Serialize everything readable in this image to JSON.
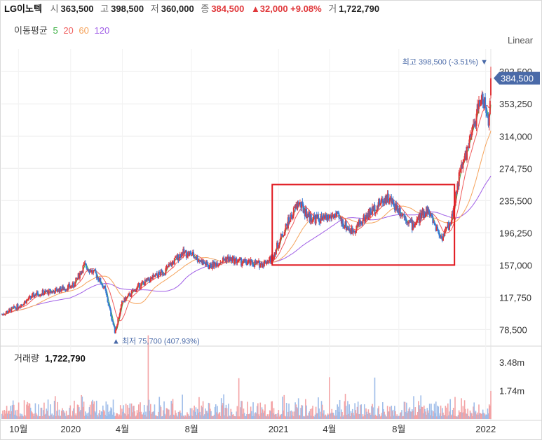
{
  "header": {
    "title": "LG이노텍",
    "open_label": "시",
    "open": "363,500",
    "high_label": "고",
    "high": "398,500",
    "low_label": "저",
    "low": "360,000",
    "close_label": "종",
    "close": "384,500",
    "change": "▲32,000 +9.08%",
    "volume_label": "거",
    "volume": "1,722,790"
  },
  "moving_averages": {
    "label": "이동평균",
    "items": [
      {
        "period": "5",
        "color": "#3cb043"
      },
      {
        "period": "20",
        "color": "#ef5b5b"
      },
      {
        "period": "60",
        "color": "#f5a35b"
      },
      {
        "period": "120",
        "color": "#a05fe6"
      }
    ]
  },
  "scale_mode": "Linear",
  "colors": {
    "up": "#e0373a",
    "down": "#3a7bd5",
    "price_tag": "#4a6aa8",
    "highlight_box": "#e0161d",
    "grid": "#ececec",
    "annotation": "#4a6aa8"
  },
  "chart_data": {
    "type": "candlestick",
    "y_axis": {
      "range": [
        60000,
        420000
      ],
      "ticks": [
        "78,500",
        "117,750",
        "157,000",
        "196,250",
        "235,500",
        "274,750",
        "314,000",
        "353,250",
        "392,500"
      ],
      "tick_values": [
        78500,
        117750,
        157000,
        196250,
        235500,
        274750,
        314000,
        353250,
        392500
      ]
    },
    "x_axis": {
      "ticks": [
        "10월",
        "2020",
        "4월",
        "8월",
        "2021",
        "4월",
        "8월",
        "2022"
      ],
      "tick_dates": [
        "2019-10-01",
        "2020-01-01",
        "2020-04-01",
        "2020-08-01",
        "2021-01-01",
        "2021-04-01",
        "2021-08-01",
        "2022-01-01"
      ],
      "start": "2019-09-01",
      "end": "2022-01-10"
    },
    "price_series": [
      {
        "date": "2019-09-02",
        "close": 97000
      },
      {
        "date": "2019-10-01",
        "close": 107000
      },
      {
        "date": "2019-11-01",
        "close": 122000
      },
      {
        "date": "2019-12-01",
        "close": 125000
      },
      {
        "date": "2020-01-06",
        "close": 132000
      },
      {
        "date": "2020-01-25",
        "close": 157000
      },
      {
        "date": "2020-02-15",
        "close": 145000
      },
      {
        "date": "2020-03-01",
        "close": 128000
      },
      {
        "date": "2020-03-19",
        "close": 75700
      },
      {
        "date": "2020-04-01",
        "close": 112000
      },
      {
        "date": "2020-05-01",
        "close": 132000
      },
      {
        "date": "2020-06-15",
        "close": 150000
      },
      {
        "date": "2020-07-15",
        "close": 172000
      },
      {
        "date": "2020-08-01",
        "close": 170000
      },
      {
        "date": "2020-09-01",
        "close": 155000
      },
      {
        "date": "2020-10-01",
        "close": 165000
      },
      {
        "date": "2020-11-01",
        "close": 160000
      },
      {
        "date": "2020-12-01",
        "close": 158000
      },
      {
        "date": "2020-12-20",
        "close": 165000
      },
      {
        "date": "2021-01-15",
        "close": 205000
      },
      {
        "date": "2021-02-05",
        "close": 233000
      },
      {
        "date": "2021-02-25",
        "close": 215000
      },
      {
        "date": "2021-03-20",
        "close": 212000
      },
      {
        "date": "2021-04-10",
        "close": 218000
      },
      {
        "date": "2021-05-10",
        "close": 198000
      },
      {
        "date": "2021-06-10",
        "close": 220000
      },
      {
        "date": "2021-07-10",
        "close": 240000
      },
      {
        "date": "2021-08-01",
        "close": 225000
      },
      {
        "date": "2021-08-25",
        "close": 205000
      },
      {
        "date": "2021-09-20",
        "close": 225000
      },
      {
        "date": "2021-10-15",
        "close": 190000
      },
      {
        "date": "2021-11-01",
        "close": 210000
      },
      {
        "date": "2021-11-15",
        "close": 265000
      },
      {
        "date": "2021-12-05",
        "close": 310000
      },
      {
        "date": "2021-12-25",
        "close": 365000
      },
      {
        "date": "2022-01-06",
        "close": 330000
      },
      {
        "date": "2022-01-10",
        "close": 384500
      }
    ],
    "high_annotation": {
      "label": "최고",
      "value": "398,500",
      "pct": "(-3.51%)",
      "price": 398500,
      "date": "2022-01-10"
    },
    "low_annotation": {
      "label": "최저",
      "value": "75,700",
      "pct": "(407.93%)",
      "price": 75700,
      "date": "2020-03-19"
    },
    "last_price_tag": "384,500",
    "last_price": 384500,
    "highlight_box": {
      "start": "2020-12-21",
      "end": "2021-11-07",
      "low": 157000,
      "high": 255000
    },
    "volume": {
      "label": "거래량",
      "value": "1,722,790",
      "ticks": [
        "1.74m",
        "3.48m"
      ],
      "tick_values": [
        1740000,
        3480000
      ],
      "range": [
        0,
        4300000
      ]
    }
  }
}
